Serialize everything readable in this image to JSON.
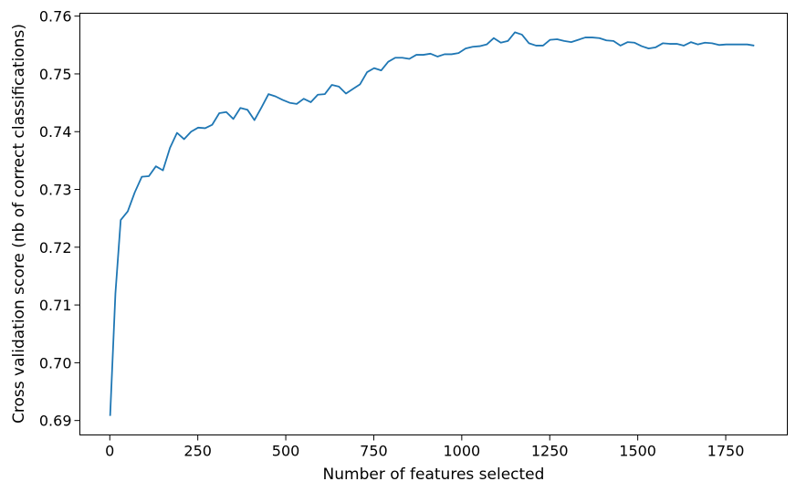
{
  "chart_data": {
    "type": "line",
    "title": "",
    "xlabel": "Number of features selected",
    "ylabel": "Cross validation score (nb of correct classifications)",
    "xlim": [
      -85,
      1925
    ],
    "ylim": [
      0.6875,
      0.7605
    ],
    "x_ticks": [
      0,
      250,
      500,
      750,
      1000,
      1250,
      1500,
      1750
    ],
    "y_ticks": [
      0.69,
      0.7,
      0.71,
      0.72,
      0.73,
      0.74,
      0.75,
      0.76
    ],
    "x_tick_labels": [
      "0",
      "250",
      "500",
      "750",
      "1000",
      "1250",
      "1500",
      "1750"
    ],
    "y_tick_labels": [
      "0.69",
      "0.70",
      "0.71",
      "0.72",
      "0.73",
      "0.74",
      "0.75",
      "0.76"
    ],
    "grid": false,
    "legend": "none",
    "series": [
      {
        "color": "#1f77b4",
        "x": [
          1,
          16,
          31,
          51,
          71,
          91,
          111,
          131,
          151,
          171,
          191,
          211,
          231,
          251,
          271,
          291,
          311,
          331,
          351,
          371,
          391,
          411,
          431,
          451,
          471,
          491,
          511,
          531,
          551,
          571,
          591,
          611,
          631,
          651,
          671,
          691,
          711,
          731,
          751,
          771,
          791,
          811,
          831,
          851,
          871,
          891,
          911,
          931,
          951,
          971,
          991,
          1011,
          1031,
          1051,
          1071,
          1091,
          1111,
          1131,
          1151,
          1171,
          1191,
          1211,
          1231,
          1251,
          1271,
          1291,
          1311,
          1331,
          1351,
          1371,
          1391,
          1411,
          1431,
          1451,
          1471,
          1491,
          1511,
          1531,
          1551,
          1571,
          1591,
          1611,
          1631,
          1651,
          1671,
          1691,
          1711,
          1731,
          1751,
          1771,
          1791,
          1811,
          1831
        ],
        "y": [
          0.6908,
          0.712,
          0.7247,
          0.7262,
          0.7295,
          0.7322,
          0.7323,
          0.734,
          0.7333,
          0.7372,
          0.7398,
          0.7387,
          0.74,
          0.7407,
          0.7406,
          0.7412,
          0.7432,
          0.7434,
          0.7422,
          0.7441,
          0.7438,
          0.742,
          0.7442,
          0.7465,
          0.7461,
          0.7455,
          0.745,
          0.7448,
          0.7457,
          0.7451,
          0.7464,
          0.7465,
          0.7481,
          0.7478,
          0.7466,
          0.7474,
          0.7482,
          0.7503,
          0.751,
          0.7506,
          0.7521,
          0.7528,
          0.7528,
          0.7526,
          0.7533,
          0.7533,
          0.7535,
          0.753,
          0.7534,
          0.7534,
          0.7536,
          0.7544,
          0.7547,
          0.7548,
          0.7551,
          0.7562,
          0.7554,
          0.7557,
          0.7572,
          0.7568,
          0.7553,
          0.7549,
          0.7549,
          0.7559,
          0.756,
          0.7557,
          0.7555,
          0.7559,
          0.7563,
          0.7563,
          0.7562,
          0.7558,
          0.7557,
          0.7549,
          0.7555,
          0.7554,
          0.7548,
          0.7544,
          0.7546,
          0.7553,
          0.7552,
          0.7552,
          0.7549,
          0.7555,
          0.7551,
          0.7554,
          0.7553,
          0.755,
          0.7551,
          0.7551,
          0.7551,
          0.7551,
          0.7549
        ]
      }
    ]
  }
}
